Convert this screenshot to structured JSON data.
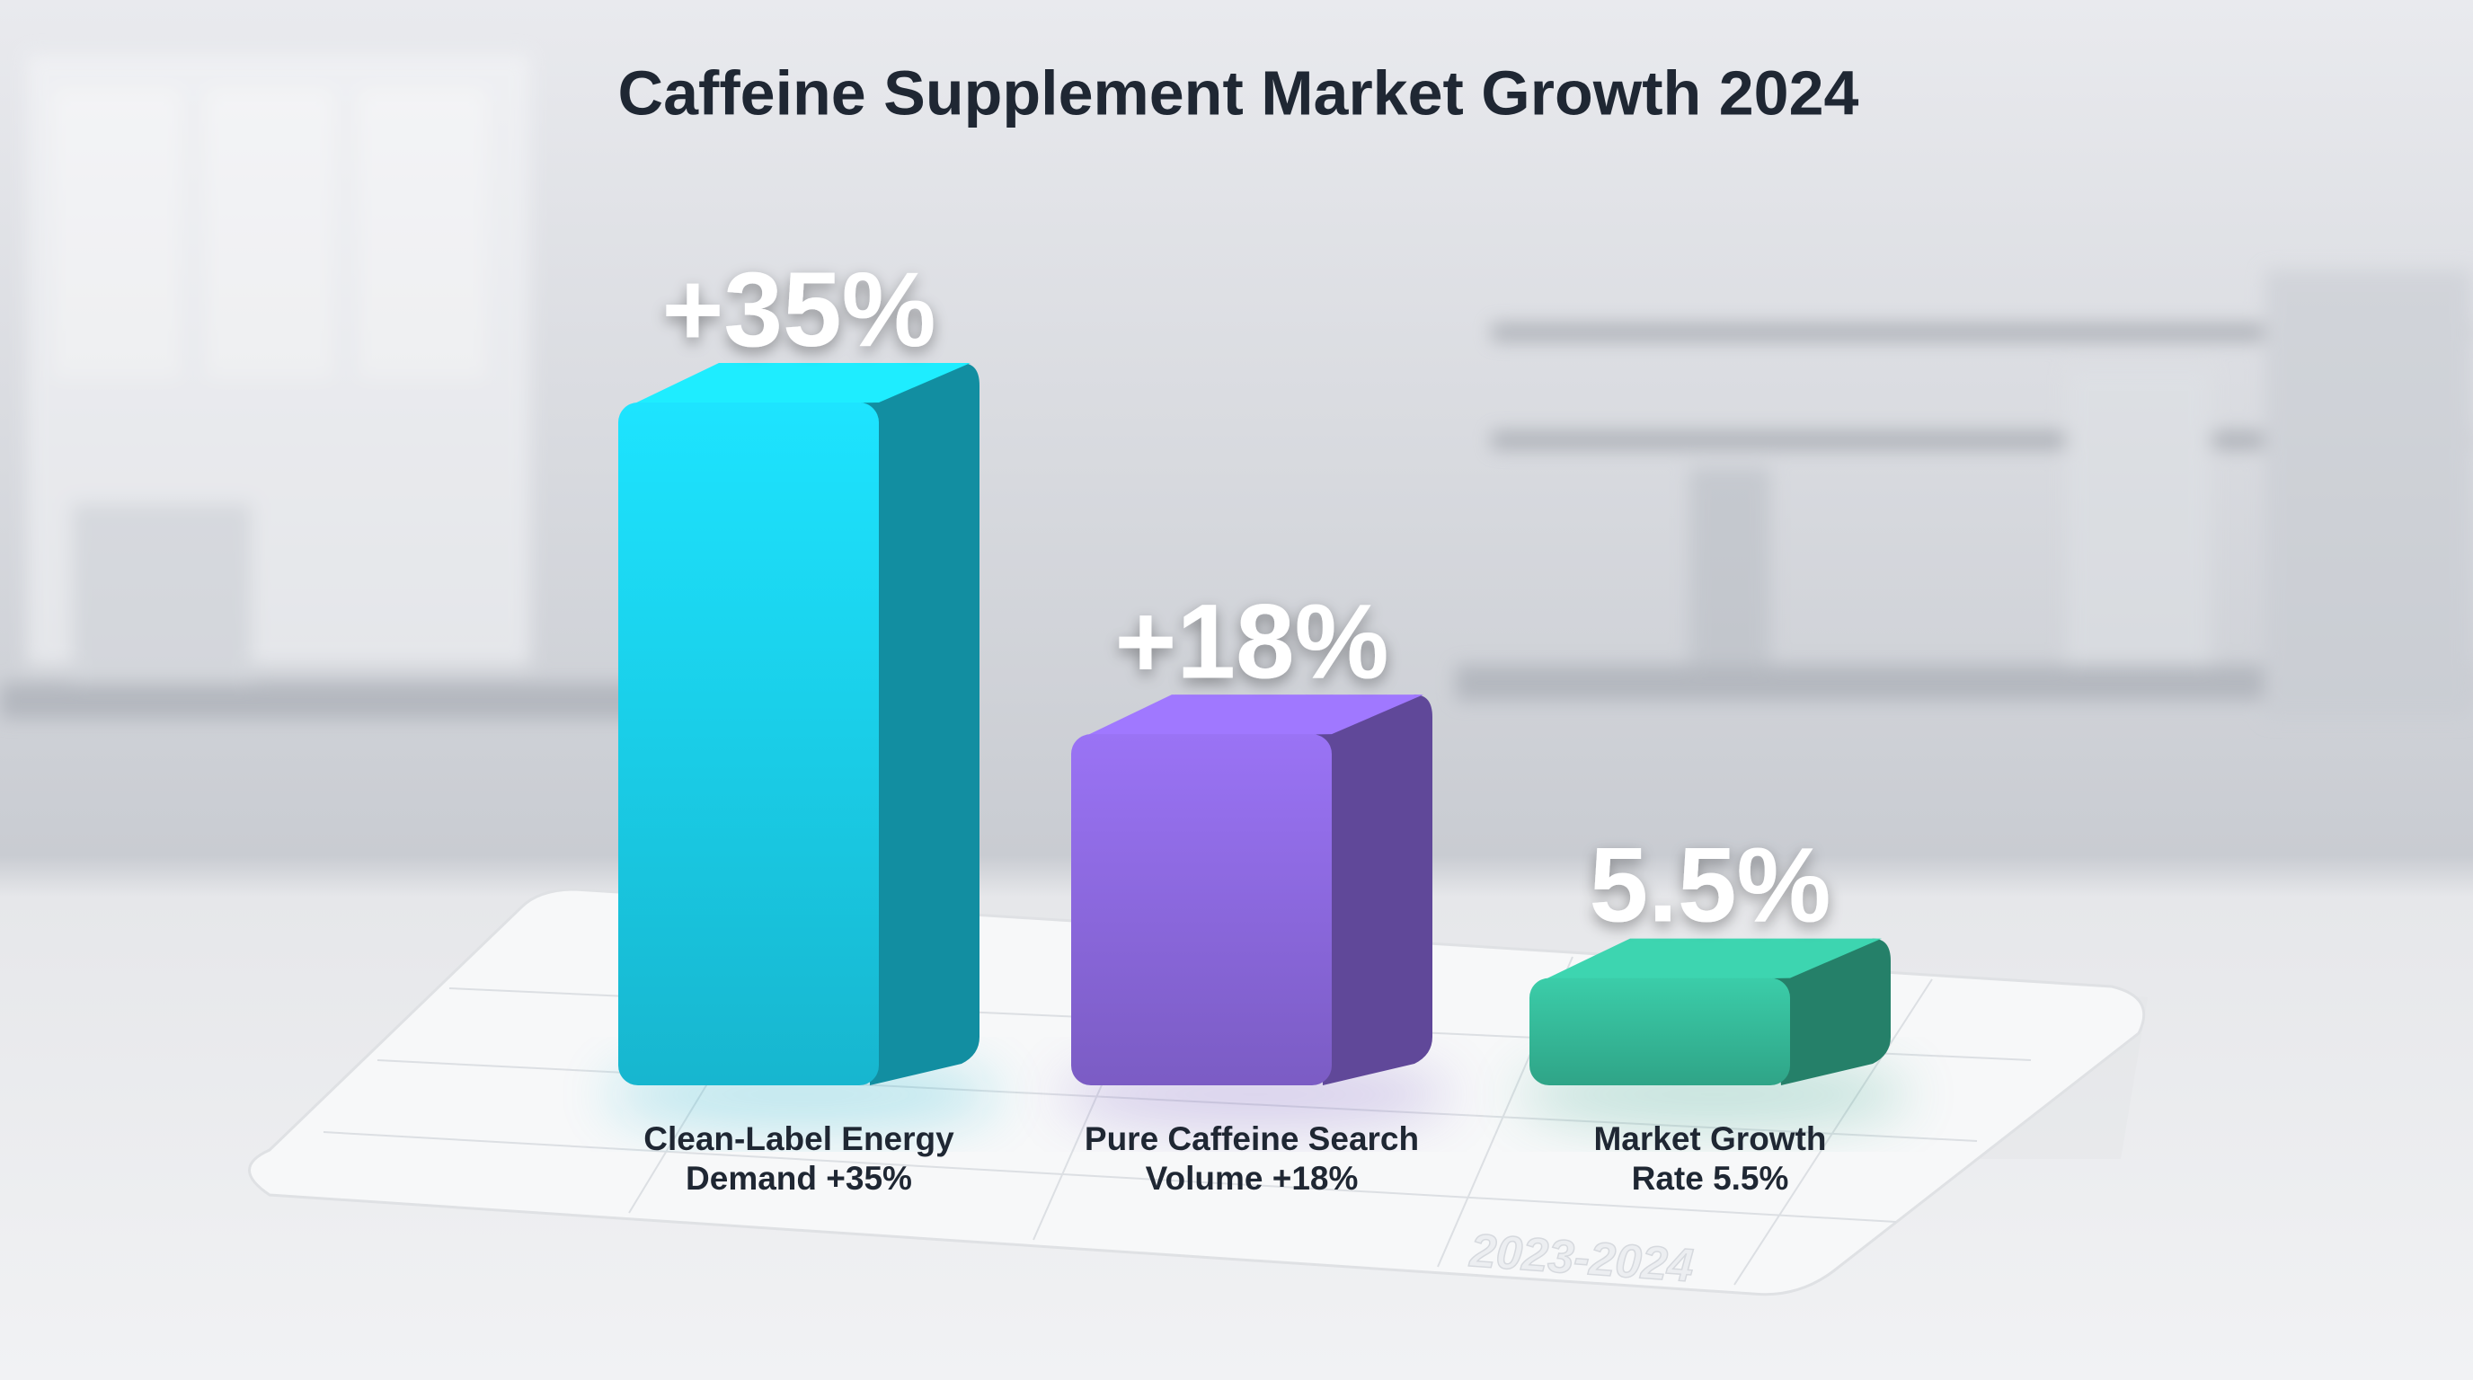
{
  "chart_data": {
    "type": "bar3d",
    "title": "Caffeine Supplement Market Growth 2024",
    "categories": [
      [
        "Clean-Label Energy",
        "Demand +35%"
      ],
      [
        "Pure Caffeine Search",
        "Volume +18%"
      ],
      [
        "Market Growth",
        "Rate 5.5%"
      ]
    ],
    "values": [
      35,
      18,
      5.5
    ],
    "value_labels": [
      "+35%",
      "+18%",
      "5.5%"
    ],
    "colors": [
      "#17b6cf",
      "#7b5cc4",
      "#2fa487"
    ],
    "footnote": "2023-2024"
  }
}
